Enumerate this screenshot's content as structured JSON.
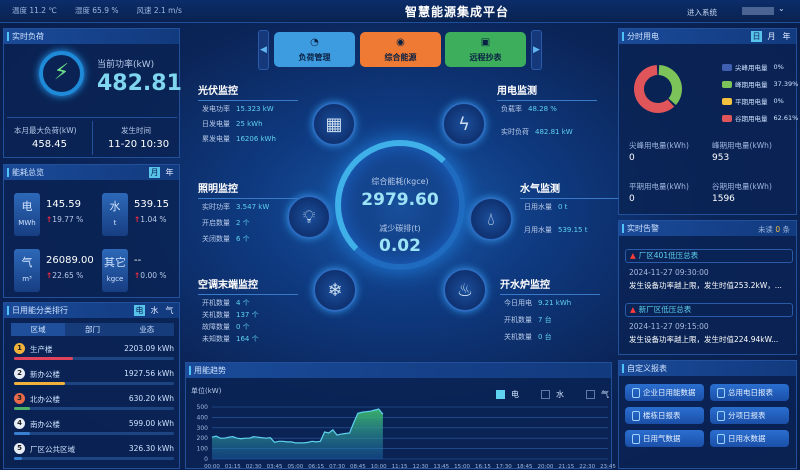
{
  "header": {
    "weather": [
      {
        "label": "温度",
        "value": "11.2 ℃"
      },
      {
        "label": "湿度",
        "value": "65.9 %"
      },
      {
        "label": "风速",
        "value": "2.1 m/s"
      }
    ],
    "title": "智慧能源集成平台",
    "enter_system": "进入系统"
  },
  "realtime_load": {
    "title": "实时负荷",
    "power_label": "当前功率(kW)",
    "power_value": "482.81",
    "max_label": "本月最大负荷(kW)",
    "max_value": "458.45",
    "time_label": "发生时间",
    "time_value": "11-20 10:30"
  },
  "energy_overview": {
    "title": "能耗总览",
    "toggles": [
      "月",
      "年"
    ],
    "active": 0,
    "items": [
      {
        "name": "电",
        "unit": "MWh",
        "value": "145.59",
        "change": "19.77 %"
      },
      {
        "name": "水",
        "unit": "t",
        "value": "539.15",
        "change": "1.04 %"
      },
      {
        "name": "气",
        "unit": "m³",
        "value": "26089.00",
        "change": "22.65 %"
      },
      {
        "name": "其它",
        "unit": "kgce",
        "value": "--",
        "change": "0.00 %"
      }
    ]
  },
  "ranking": {
    "title": "日用能分类排行",
    "toggles": [
      "电",
      "水",
      "气"
    ],
    "active": 0,
    "tabs": [
      "区域",
      "部门",
      "业态"
    ],
    "items": [
      {
        "rank": "1",
        "name": "生产楼",
        "value": "2203.09 kWh",
        "fraction": 0.37,
        "color": "#e0435c",
        "medal": "#f0b23a"
      },
      {
        "rank": "2",
        "name": "新办公楼",
        "value": "1927.56 kWh",
        "fraction": 0.32,
        "color": "#f0b23a",
        "medal": "#e8eef5"
      },
      {
        "rank": "3",
        "name": "北办公楼",
        "value": "630.20 kWh",
        "fraction": 0.1,
        "color": "#4caf6a",
        "medal": "#e86a4a"
      },
      {
        "rank": "4",
        "name": "南办公楼",
        "value": "599.00 kWh",
        "fraction": 0.1,
        "color": "#3a7fd0",
        "medal": "#e8eef5"
      },
      {
        "rank": "5",
        "name": "厂区公共区域",
        "value": "326.30 kWh",
        "fraction": 0.05,
        "color": "#3a7fd0",
        "medal": "#e8eef5"
      }
    ]
  },
  "nav": {
    "buttons": [
      {
        "label": "负荷管理",
        "icon": "gauge-icon",
        "color": "#3d9be0"
      },
      {
        "label": "综合能源",
        "icon": "energy-icon",
        "color": "#ef7a33"
      },
      {
        "label": "远程抄表",
        "icon": "meter-icon",
        "color": "#3cae5c"
      }
    ]
  },
  "center": {
    "total_label": "综合能耗(kgce)",
    "total_value": "2979.60",
    "carbon_label": "减少碳排(t)",
    "carbon_value": "0.02"
  },
  "monitors": {
    "pv": {
      "title": "光伏监控",
      "rows": [
        [
          "发电功率",
          "15.323 kW"
        ],
        [
          "日发电量",
          "25 kWh"
        ],
        [
          "累发电量",
          "16206 kWh"
        ]
      ]
    },
    "power": {
      "title": "用电监测",
      "rows": [
        [
          "负载率",
          "48.28 %"
        ],
        [
          "实时负荷",
          "482.81 kW"
        ]
      ]
    },
    "light": {
      "title": "照明监控",
      "rows": [
        [
          "实时功率",
          "3.547 kW"
        ],
        [
          "开启数量",
          "2 个"
        ],
        [
          "关闭数量",
          "6 个"
        ]
      ]
    },
    "water": {
      "title": "水气监测",
      "rows": [
        [
          "日用水量",
          "0 t"
        ],
        [
          "月用水量",
          "539.15 t"
        ]
      ]
    },
    "ac": {
      "title": "空调末端监控",
      "rows": [
        [
          "开机数量",
          "4 个"
        ],
        [
          "关机数量",
          "137 个"
        ],
        [
          "故障数量",
          "0 个"
        ],
        [
          "未知数量",
          "164 个"
        ]
      ]
    },
    "boiler": {
      "title": "开水炉监控",
      "rows": [
        [
          "今日用电",
          "9.21 kWh"
        ],
        [
          "开机数量",
          "7 台"
        ],
        [
          "关机数量",
          "0 台"
        ]
      ]
    }
  },
  "tou": {
    "title": "分时用电",
    "toggles": [
      "日",
      "月",
      "年"
    ],
    "active": 0,
    "legend": [
      {
        "label": "尖峰用电量",
        "pct": "0%",
        "value": 0,
        "color": "#3f5fb0"
      },
      {
        "label": "峰期用电量",
        "pct": "37.39%",
        "value": 37.39,
        "color": "#7cc35a"
      },
      {
        "label": "平期用电量",
        "pct": "0%",
        "value": 0,
        "color": "#f3c23e"
      },
      {
        "label": "谷期用电量",
        "pct": "62.61%",
        "value": 62.61,
        "color": "#e0555a"
      }
    ],
    "stats": [
      {
        "label": "尖峰用电量(kWh)",
        "value": "0"
      },
      {
        "label": "峰期用电量(kWh)",
        "value": "953"
      },
      {
        "label": "平期用电量(kWh)",
        "value": "0"
      },
      {
        "label": "谷期用电量(kWh)",
        "value": "1596"
      }
    ]
  },
  "alarms": {
    "title": "实时告警",
    "unread_prefix": "未读",
    "unread_count": "0",
    "unread_suffix": "条",
    "items": [
      {
        "name": "厂区401低压总表",
        "time": "2024-11-27 09:30:00",
        "msg": "发生设备功率越上限，发生时值253.2kW，..."
      },
      {
        "name": "新厂区低压总表",
        "time": "2024-11-27 09:15:00",
        "msg": "发生设备功率越上限，发生时值224.94kW..."
      }
    ]
  },
  "reports": {
    "title": "自定义报表",
    "buttons": [
      "企业日用能数据",
      "总用电日报表",
      "楼栋日报表",
      "分项日报表",
      "日用气数据",
      "日用水数据"
    ]
  },
  "trend": {
    "title": "用能趋势",
    "legend": [
      {
        "label": "电",
        "active": true
      },
      {
        "label": "水",
        "active": false
      },
      {
        "label": "气",
        "active": false
      }
    ]
  },
  "chart_data": {
    "type": "area",
    "ylabel": "单位(kW)",
    "ylim": [
      0,
      500
    ],
    "yticks": [
      0,
      100,
      200,
      300,
      400,
      500
    ],
    "xticks": [
      "00:00",
      "01:15",
      "02:30",
      "03:45",
      "05:00",
      "06:15",
      "07:30",
      "08:45",
      "10:00",
      "11:15",
      "12:30",
      "13:45",
      "15:00",
      "16:15",
      "17:30",
      "18:45",
      "20:00",
      "21:15",
      "22:30",
      "23:45"
    ],
    "series": [
      {
        "name": "电",
        "color": "#5fd2f0",
        "x": [
          "00:00",
          "00:15",
          "00:30",
          "00:45",
          "01:00",
          "01:15",
          "01:30",
          "01:45",
          "02:00",
          "02:15",
          "02:30",
          "02:45",
          "03:00",
          "03:15",
          "03:30",
          "03:45",
          "04:00",
          "04:15",
          "04:30",
          "04:45",
          "05:00",
          "05:15",
          "05:30",
          "05:45",
          "06:00",
          "06:15",
          "06:30",
          "06:45",
          "07:00",
          "07:15",
          "07:30",
          "07:45",
          "08:00",
          "08:15",
          "08:30",
          "08:45",
          "09:00",
          "09:15",
          "09:30",
          "09:45",
          "10:00",
          "10:15"
        ],
        "values": [
          210,
          220,
          200,
          200,
          210,
          215,
          200,
          195,
          200,
          200,
          215,
          210,
          205,
          200,
          205,
          160,
          170,
          170,
          165,
          165,
          155,
          155,
          155,
          160,
          170,
          165,
          170,
          260,
          250,
          280,
          230,
          240,
          245,
          250,
          350,
          440,
          450,
          455,
          460,
          470,
          480,
          430
        ]
      }
    ]
  }
}
